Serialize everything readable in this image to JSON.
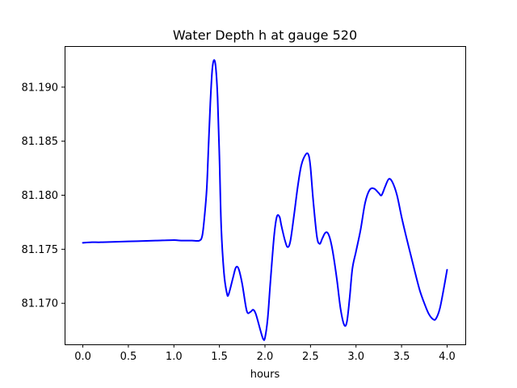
{
  "chart_data": {
    "type": "line",
    "title": "Water Depth h at gauge 520",
    "xlabel": "hours",
    "ylabel": "",
    "xlim": [
      -0.2,
      4.2
    ],
    "ylim": [
      81.1662,
      81.1938
    ],
    "grid": false,
    "x_ticks": [
      0.0,
      0.5,
      1.0,
      1.5,
      2.0,
      2.5,
      3.0,
      3.5,
      4.0
    ],
    "x_tick_labels": [
      "0.0",
      "0.5",
      "1.0",
      "1.5",
      "2.0",
      "2.5",
      "3.0",
      "3.5",
      "4.0"
    ],
    "y_ticks": [
      81.17,
      81.175,
      81.18,
      81.185,
      81.19
    ],
    "y_tick_labels": [
      "81.170",
      "81.175",
      "81.180",
      "81.185",
      "81.190"
    ],
    "series": [
      {
        "color": "#0000ff",
        "x": [
          0.0,
          0.1,
          0.2,
          0.4,
          0.6,
          0.8,
          1.0,
          1.05,
          1.1,
          1.2,
          1.28,
          1.31,
          1.33,
          1.36,
          1.38,
          1.4,
          1.42,
          1.44,
          1.46,
          1.48,
          1.5,
          1.52,
          1.55,
          1.58,
          1.6,
          1.65,
          1.68,
          1.71,
          1.75,
          1.8,
          1.84,
          1.87,
          1.9,
          1.95,
          1.98,
          2.0,
          2.03,
          2.06,
          2.1,
          2.13,
          2.16,
          2.18,
          2.22,
          2.25,
          2.28,
          2.32,
          2.36,
          2.4,
          2.45,
          2.48,
          2.5,
          2.53,
          2.57,
          2.6,
          2.63,
          2.66,
          2.69,
          2.72,
          2.75,
          2.79,
          2.83,
          2.87,
          2.9,
          2.93,
          2.96,
          3.0,
          3.05,
          3.1,
          3.15,
          3.2,
          3.25,
          3.28,
          3.32,
          3.36,
          3.4,
          3.45,
          3.5,
          3.55,
          3.6,
          3.65,
          3.7,
          3.75,
          3.8,
          3.85,
          3.88,
          3.92,
          3.96,
          4.0
        ],
        "y": [
          81.1756,
          81.17565,
          81.17565,
          81.1757,
          81.17575,
          81.1758,
          81.17585,
          81.17582,
          81.1758,
          81.1758,
          81.1758,
          81.1762,
          81.1775,
          81.1805,
          81.1845,
          81.1885,
          81.1915,
          81.1925,
          81.1918,
          81.189,
          81.1835,
          81.177,
          81.1728,
          81.171,
          81.1708,
          81.1724,
          81.1733,
          81.1732,
          81.1718,
          81.1693,
          81.1692,
          81.1694,
          81.169,
          81.1675,
          81.1667,
          81.1668,
          81.1686,
          81.172,
          81.1762,
          81.178,
          81.178,
          81.1772,
          81.1758,
          81.1752,
          81.1758,
          81.1782,
          81.1808,
          81.1828,
          81.1838,
          81.1837,
          81.1826,
          81.1795,
          81.1762,
          81.1755,
          81.176,
          81.1765,
          81.1765,
          81.1758,
          81.1745,
          81.1722,
          81.1695,
          81.168,
          81.1683,
          81.1705,
          81.1732,
          81.1748,
          81.1768,
          81.1793,
          81.1805,
          81.1806,
          81.1802,
          81.18,
          81.1808,
          81.1815,
          81.1812,
          81.18,
          81.178,
          81.1762,
          81.1745,
          81.1728,
          81.1712,
          81.17,
          81.169,
          81.1685,
          81.1686,
          81.1695,
          81.1712,
          81.1731
        ]
      }
    ]
  }
}
